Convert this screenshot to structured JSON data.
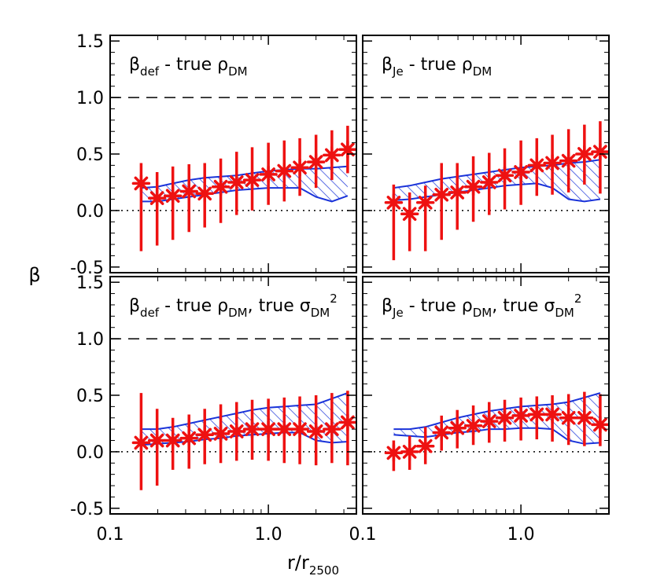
{
  "figure": {
    "ylabel": "β",
    "xlabel_main": "r/r",
    "xlabel_sub": "2500"
  },
  "colors": {
    "marker": "#ee1111",
    "band": "#1a33d9",
    "frame": "#000000"
  },
  "chart_data": [
    {
      "type": "scatter",
      "panel": "top-left",
      "title_parts": [
        {
          "t": "β",
          "s": "n"
        },
        {
          "t": "def",
          "s": "sub"
        },
        {
          "t": " - true ρ",
          "s": "n"
        },
        {
          "t": "DM",
          "s": "sub"
        }
      ],
      "xscale": "log",
      "xlim": [
        0.1,
        3.6
      ],
      "ylim": [
        -0.55,
        1.55
      ],
      "xticks": [
        "0.1",
        "1.0"
      ],
      "yticks": [
        "-0.5",
        "0.0",
        "0.5",
        "1.0",
        "1.5"
      ],
      "reference_lines": [
        {
          "y": 1.0,
          "style": "dashed"
        },
        {
          "y": 0.0,
          "style": "dotted"
        }
      ],
      "x": [
        0.157,
        0.198,
        0.249,
        0.315,
        0.396,
        0.5,
        0.63,
        0.79,
        1.0,
        1.26,
        1.58,
        2.0,
        2.52,
        3.17
      ],
      "y": [
        0.24,
        0.11,
        0.13,
        0.17,
        0.15,
        0.21,
        0.25,
        0.27,
        0.32,
        0.35,
        0.38,
        0.43,
        0.49,
        0.54
      ],
      "yerr_low": [
        -0.36,
        -0.31,
        -0.26,
        -0.19,
        -0.15,
        -0.11,
        -0.04,
        0.0,
        0.05,
        0.08,
        0.13,
        0.2,
        0.27,
        0.33
      ],
      "yerr_high": [
        0.42,
        0.34,
        0.39,
        0.41,
        0.42,
        0.46,
        0.52,
        0.56,
        0.6,
        0.62,
        0.64,
        0.67,
        0.71,
        0.75
      ],
      "band_upper": [
        0.2,
        0.21,
        0.24,
        0.27,
        0.29,
        0.3,
        0.31,
        0.33,
        0.35,
        0.36,
        0.37,
        0.37,
        0.38,
        0.39
      ],
      "band_lower": [
        0.08,
        0.08,
        0.1,
        0.12,
        0.14,
        0.16,
        0.18,
        0.19,
        0.2,
        0.2,
        0.2,
        0.12,
        0.08,
        0.13
      ]
    },
    {
      "type": "scatter",
      "panel": "top-right",
      "title_parts": [
        {
          "t": "β",
          "s": "n"
        },
        {
          "t": "Je",
          "s": "sub"
        },
        {
          "t": " - true ρ",
          "s": "n"
        },
        {
          "t": "DM",
          "s": "sub"
        }
      ],
      "xscale": "log",
      "xlim": [
        0.1,
        3.6
      ],
      "ylim": [
        -0.55,
        1.55
      ],
      "xticks": [
        "0.1",
        "1.0"
      ],
      "yticks": [],
      "reference_lines": [
        {
          "y": 1.0,
          "style": "dashed"
        },
        {
          "y": 0.0,
          "style": "dotted"
        }
      ],
      "x": [
        0.157,
        0.198,
        0.249,
        0.315,
        0.396,
        0.5,
        0.63,
        0.79,
        1.0,
        1.26,
        1.58,
        2.0,
        2.52,
        3.17
      ],
      "y": [
        0.07,
        -0.03,
        0.07,
        0.14,
        0.16,
        0.21,
        0.25,
        0.31,
        0.34,
        0.4,
        0.42,
        0.44,
        0.5,
        0.52
      ],
      "yerr_low": [
        -0.44,
        -0.36,
        -0.36,
        -0.26,
        -0.17,
        -0.1,
        -0.04,
        0.01,
        0.05,
        0.13,
        0.14,
        0.16,
        0.23,
        0.15
      ],
      "yerr_high": [
        0.23,
        0.16,
        0.22,
        0.42,
        0.42,
        0.48,
        0.51,
        0.55,
        0.62,
        0.64,
        0.67,
        0.72,
        0.76,
        0.79
      ],
      "band_upper": [
        0.2,
        0.22,
        0.25,
        0.28,
        0.3,
        0.32,
        0.34,
        0.36,
        0.38,
        0.39,
        0.4,
        0.42,
        0.43,
        0.45
      ],
      "band_lower": [
        0.09,
        0.1,
        0.12,
        0.14,
        0.16,
        0.18,
        0.2,
        0.22,
        0.23,
        0.24,
        0.2,
        0.1,
        0.08,
        0.1
      ]
    },
    {
      "type": "scatter",
      "panel": "bottom-left",
      "title_parts": [
        {
          "t": "β",
          "s": "n"
        },
        {
          "t": "def",
          "s": "sub"
        },
        {
          "t": " - true ρ",
          "s": "n"
        },
        {
          "t": "DM",
          "s": "sub"
        },
        {
          "t": ", true σ",
          "s": "n"
        },
        {
          "t": "DM",
          "s": "sub"
        },
        {
          "t": "2",
          "s": "sup"
        }
      ],
      "xscale": "log",
      "xlim": [
        0.1,
        3.6
      ],
      "ylim": [
        -0.55,
        1.55
      ],
      "xticks": [
        "0.1",
        "1.0"
      ],
      "yticks": [
        "-0.5",
        "0.0",
        "0.5",
        "1.0",
        "1.5"
      ],
      "reference_lines": [
        {
          "y": 1.0,
          "style": "dashed"
        },
        {
          "y": 0.0,
          "style": "dotted"
        }
      ],
      "x": [
        0.157,
        0.198,
        0.249,
        0.315,
        0.396,
        0.5,
        0.63,
        0.79,
        1.0,
        1.26,
        1.58,
        2.0,
        2.52,
        3.17
      ],
      "y": [
        0.08,
        0.1,
        0.1,
        0.12,
        0.15,
        0.16,
        0.18,
        0.2,
        0.2,
        0.2,
        0.2,
        0.18,
        0.2,
        0.26
      ],
      "yerr_low": [
        -0.34,
        -0.3,
        -0.16,
        -0.15,
        -0.11,
        -0.1,
        -0.08,
        -0.07,
        -0.08,
        -0.1,
        -0.11,
        -0.12,
        -0.1,
        -0.12
      ],
      "yerr_high": [
        0.52,
        0.38,
        0.3,
        0.33,
        0.38,
        0.42,
        0.44,
        0.46,
        0.47,
        0.48,
        0.49,
        0.5,
        0.52,
        0.54
      ],
      "band_upper": [
        0.2,
        0.2,
        0.22,
        0.25,
        0.28,
        0.31,
        0.34,
        0.37,
        0.39,
        0.4,
        0.41,
        0.42,
        0.47,
        0.52
      ],
      "band_lower": [
        0.06,
        0.07,
        0.08,
        0.09,
        0.11,
        0.12,
        0.14,
        0.15,
        0.16,
        0.17,
        0.17,
        0.1,
        0.08,
        0.09
      ]
    },
    {
      "type": "scatter",
      "panel": "bottom-right",
      "title_parts": [
        {
          "t": "β",
          "s": "n"
        },
        {
          "t": "Je",
          "s": "sub"
        },
        {
          "t": " - true ρ",
          "s": "n"
        },
        {
          "t": "DM",
          "s": "sub"
        },
        {
          "t": ", true σ",
          "s": "n"
        },
        {
          "t": "DM",
          "s": "sub"
        },
        {
          "t": "2",
          "s": "sup"
        }
      ],
      "xscale": "log",
      "xlim": [
        0.1,
        3.6
      ],
      "ylim": [
        -0.55,
        1.55
      ],
      "xticks": [
        "0.1",
        "1.0"
      ],
      "yticks": [],
      "reference_lines": [
        {
          "y": 1.0,
          "style": "dashed"
        },
        {
          "y": 0.0,
          "style": "dotted"
        }
      ],
      "x": [
        0.157,
        0.198,
        0.249,
        0.315,
        0.396,
        0.5,
        0.63,
        0.79,
        1.0,
        1.26,
        1.58,
        2.0,
        2.52,
        3.17
      ],
      "y": [
        -0.01,
        0.0,
        0.05,
        0.17,
        0.21,
        0.23,
        0.27,
        0.3,
        0.32,
        0.33,
        0.33,
        0.3,
        0.3,
        0.24
      ],
      "yerr_low": [
        -0.17,
        -0.16,
        -0.11,
        0.01,
        0.03,
        0.06,
        0.08,
        0.09,
        0.1,
        0.11,
        0.09,
        0.06,
        0.05,
        0.05
      ],
      "yerr_high": [
        0.1,
        0.14,
        0.22,
        0.32,
        0.37,
        0.41,
        0.44,
        0.46,
        0.48,
        0.49,
        0.5,
        0.51,
        0.53,
        0.51
      ],
      "band_upper": [
        0.2,
        0.2,
        0.22,
        0.26,
        0.3,
        0.33,
        0.36,
        0.38,
        0.4,
        0.41,
        0.42,
        0.44,
        0.48,
        0.52
      ],
      "band_lower": [
        0.15,
        0.14,
        0.13,
        0.15,
        0.17,
        0.18,
        0.2,
        0.2,
        0.21,
        0.21,
        0.2,
        0.1,
        0.07,
        0.08
      ]
    }
  ]
}
